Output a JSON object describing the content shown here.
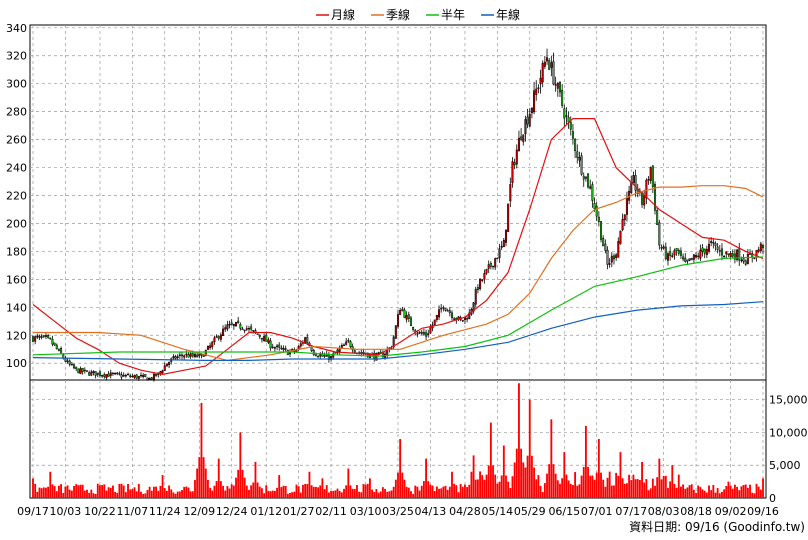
{
  "legend": [
    {
      "label": "月線",
      "color": "#e01010"
    },
    {
      "label": "季線",
      "color": "#e07020"
    },
    {
      "label": "半年",
      "color": "#10c010"
    },
    {
      "label": "年線",
      "color": "#1060c0"
    }
  ],
  "source_note": "資料日期: 09/16 (Goodinfo.tw)",
  "chart_data": [
    {
      "type": "candlestick",
      "ylim": [
        88,
        342
      ],
      "yticks": [
        100,
        120,
        140,
        160,
        180,
        200,
        220,
        240,
        260,
        280,
        300,
        320,
        340
      ],
      "grid": true,
      "legend_position": "top-center",
      "x_tick_labels": [
        "09/17",
        "10/03",
        "10/22",
        "11/07",
        "11/24",
        "12/09",
        "12/24",
        "01/12",
        "01/27",
        "02/11",
        "03/10",
        "03/25",
        "04/13",
        "04/28",
        "05/14",
        "05/29",
        "06/15",
        "07/01",
        "07/17",
        "08/03",
        "08/18",
        "09/02",
        "09/16"
      ],
      "close_anchors": [
        [
          0,
          118
        ],
        [
          4,
          118
        ],
        [
          8,
          116
        ],
        [
          12,
          108
        ],
        [
          16,
          100
        ],
        [
          20,
          95
        ],
        [
          26,
          93
        ],
        [
          34,
          92
        ],
        [
          42,
          91
        ],
        [
          50,
          90
        ],
        [
          54,
          89
        ],
        [
          58,
          92
        ],
        [
          62,
          100
        ],
        [
          66,
          104
        ],
        [
          70,
          106
        ],
        [
          74,
          105
        ],
        [
          78,
          105
        ],
        [
          82,
          112
        ],
        [
          86,
          120
        ],
        [
          90,
          126
        ],
        [
          94,
          127
        ],
        [
          98,
          126
        ],
        [
          102,
          122
        ],
        [
          106,
          119
        ],
        [
          110,
          113
        ],
        [
          114,
          110
        ],
        [
          118,
          108
        ],
        [
          122,
          109
        ],
        [
          126,
          118
        ],
        [
          130,
          108
        ],
        [
          134,
          105
        ],
        [
          138,
          104
        ],
        [
          142,
          110
        ],
        [
          146,
          115
        ],
        [
          150,
          108
        ],
        [
          154,
          107
        ],
        [
          158,
          105
        ],
        [
          162,
          106
        ],
        [
          166,
          112
        ],
        [
          170,
          140
        ],
        [
          174,
          130
        ],
        [
          178,
          122
        ],
        [
          182,
          120
        ],
        [
          186,
          130
        ],
        [
          190,
          142
        ],
        [
          194,
          135
        ],
        [
          198,
          130
        ],
        [
          202,
          135
        ],
        [
          206,
          155
        ],
        [
          210,
          165
        ],
        [
          214,
          175
        ],
        [
          218,
          185
        ],
        [
          222,
          240
        ],
        [
          226,
          265
        ],
        [
          230,
          280
        ],
        [
          234,
          300
        ],
        [
          238,
          320
        ],
        [
          242,
          300
        ],
        [
          246,
          280
        ],
        [
          250,
          260
        ],
        [
          254,
          240
        ],
        [
          258,
          225
        ],
        [
          262,
          200
        ],
        [
          266,
          170
        ],
        [
          270,
          180
        ],
        [
          274,
          210
        ],
        [
          278,
          230
        ],
        [
          282,
          215
        ],
        [
          286,
          240
        ],
        [
          290,
          185
        ],
        [
          294,
          175
        ],
        [
          298,
          180
        ],
        [
          302,
          170
        ],
        [
          306,
          175
        ],
        [
          310,
          180
        ],
        [
          314,
          185
        ],
        [
          318,
          180
        ],
        [
          322,
          178
        ],
        [
          326,
          178
        ],
        [
          330,
          174
        ],
        [
          334,
          178
        ],
        [
          338,
          185
        ]
      ],
      "moving_averages": [
        {
          "name": "月線",
          "points": [
            [
              0,
              142
            ],
            [
              10,
              130
            ],
            [
              20,
              118
            ],
            [
              30,
              110
            ],
            [
              40,
              100
            ],
            [
              50,
              95
            ],
            [
              60,
              92
            ],
            [
              70,
              95
            ],
            [
              80,
              98
            ],
            [
              90,
              110
            ],
            [
              100,
              122
            ],
            [
              110,
              122
            ],
            [
              120,
              118
            ],
            [
              130,
              112
            ],
            [
              140,
              108
            ],
            [
              150,
              107
            ],
            [
              160,
              106
            ],
            [
              170,
              115
            ],
            [
              180,
              125
            ],
            [
              190,
              128
            ],
            [
              200,
              133
            ],
            [
              210,
              145
            ],
            [
              220,
              165
            ],
            [
              230,
              210
            ],
            [
              240,
              260
            ],
            [
              250,
              275
            ],
            [
              260,
              275
            ],
            [
              270,
              240
            ],
            [
              280,
              225
            ],
            [
              290,
              210
            ],
            [
              300,
              200
            ],
            [
              310,
              190
            ],
            [
              320,
              188
            ],
            [
              330,
              180
            ],
            [
              338,
              175
            ]
          ]
        },
        {
          "name": "季線",
          "points": [
            [
              0,
              122
            ],
            [
              30,
              122
            ],
            [
              50,
              120
            ],
            [
              70,
              110
            ],
            [
              90,
              102
            ],
            [
              110,
              106
            ],
            [
              130,
              112
            ],
            [
              150,
              110
            ],
            [
              170,
              110
            ],
            [
              190,
              120
            ],
            [
              210,
              128
            ],
            [
              220,
              135
            ],
            [
              230,
              150
            ],
            [
              240,
              175
            ],
            [
              250,
              195
            ],
            [
              260,
              210
            ],
            [
              270,
              215
            ],
            [
              280,
              222
            ],
            [
              290,
              226
            ],
            [
              300,
              226
            ],
            [
              310,
              227
            ],
            [
              320,
              227
            ],
            [
              330,
              225
            ],
            [
              338,
              219
            ]
          ]
        },
        {
          "name": "半年",
          "points": [
            [
              0,
              106
            ],
            [
              40,
              108
            ],
            [
              80,
              108
            ],
            [
              100,
              108
            ],
            [
              120,
              108
            ],
            [
              140,
              106
            ],
            [
              160,
              105
            ],
            [
              180,
              108
            ],
            [
              200,
              112
            ],
            [
              220,
              120
            ],
            [
              240,
              138
            ],
            [
              260,
              155
            ],
            [
              280,
              162
            ],
            [
              300,
              170
            ],
            [
              320,
              175
            ],
            [
              338,
              176
            ]
          ]
        },
        {
          "name": "年線",
          "points": [
            [
              0,
              104
            ],
            [
              40,
              103
            ],
            [
              80,
              102
            ],
            [
              100,
              102
            ],
            [
              120,
              103
            ],
            [
              140,
              103
            ],
            [
              160,
              103
            ],
            [
              180,
              106
            ],
            [
              200,
              110
            ],
            [
              220,
              115
            ],
            [
              240,
              125
            ],
            [
              260,
              133
            ],
            [
              280,
              138
            ],
            [
              300,
              141
            ],
            [
              320,
              142
            ],
            [
              338,
              144
            ]
          ]
        }
      ]
    },
    {
      "type": "bar",
      "ylim": [
        0,
        18000
      ],
      "yticks": [
        0,
        5000,
        10000,
        15000
      ],
      "ytick_labels": [
        "0",
        "5,000",
        "10,000",
        "15,000"
      ],
      "grid": true,
      "volume_spikes": [
        [
          0,
          3000
        ],
        [
          8,
          4000
        ],
        [
          60,
          3500
        ],
        [
          78,
          14500
        ],
        [
          86,
          6000
        ],
        [
          96,
          10000
        ],
        [
          103,
          5500
        ],
        [
          114,
          3500
        ],
        [
          128,
          4000
        ],
        [
          134,
          3000
        ],
        [
          146,
          4500
        ],
        [
          156,
          3000
        ],
        [
          170,
          9000
        ],
        [
          182,
          6000
        ],
        [
          194,
          4000
        ],
        [
          204,
          6500
        ],
        [
          212,
          11500
        ],
        [
          218,
          8000
        ],
        [
          225,
          17500
        ],
        [
          230,
          15000
        ],
        [
          240,
          12000
        ],
        [
          246,
          7000
        ],
        [
          256,
          11000
        ],
        [
          262,
          9000
        ],
        [
          272,
          7000
        ],
        [
          282,
          5500
        ],
        [
          290,
          6000
        ],
        [
          296,
          5000
        ],
        [
          322,
          2500
        ],
        [
          338,
          3000
        ]
      ]
    }
  ]
}
